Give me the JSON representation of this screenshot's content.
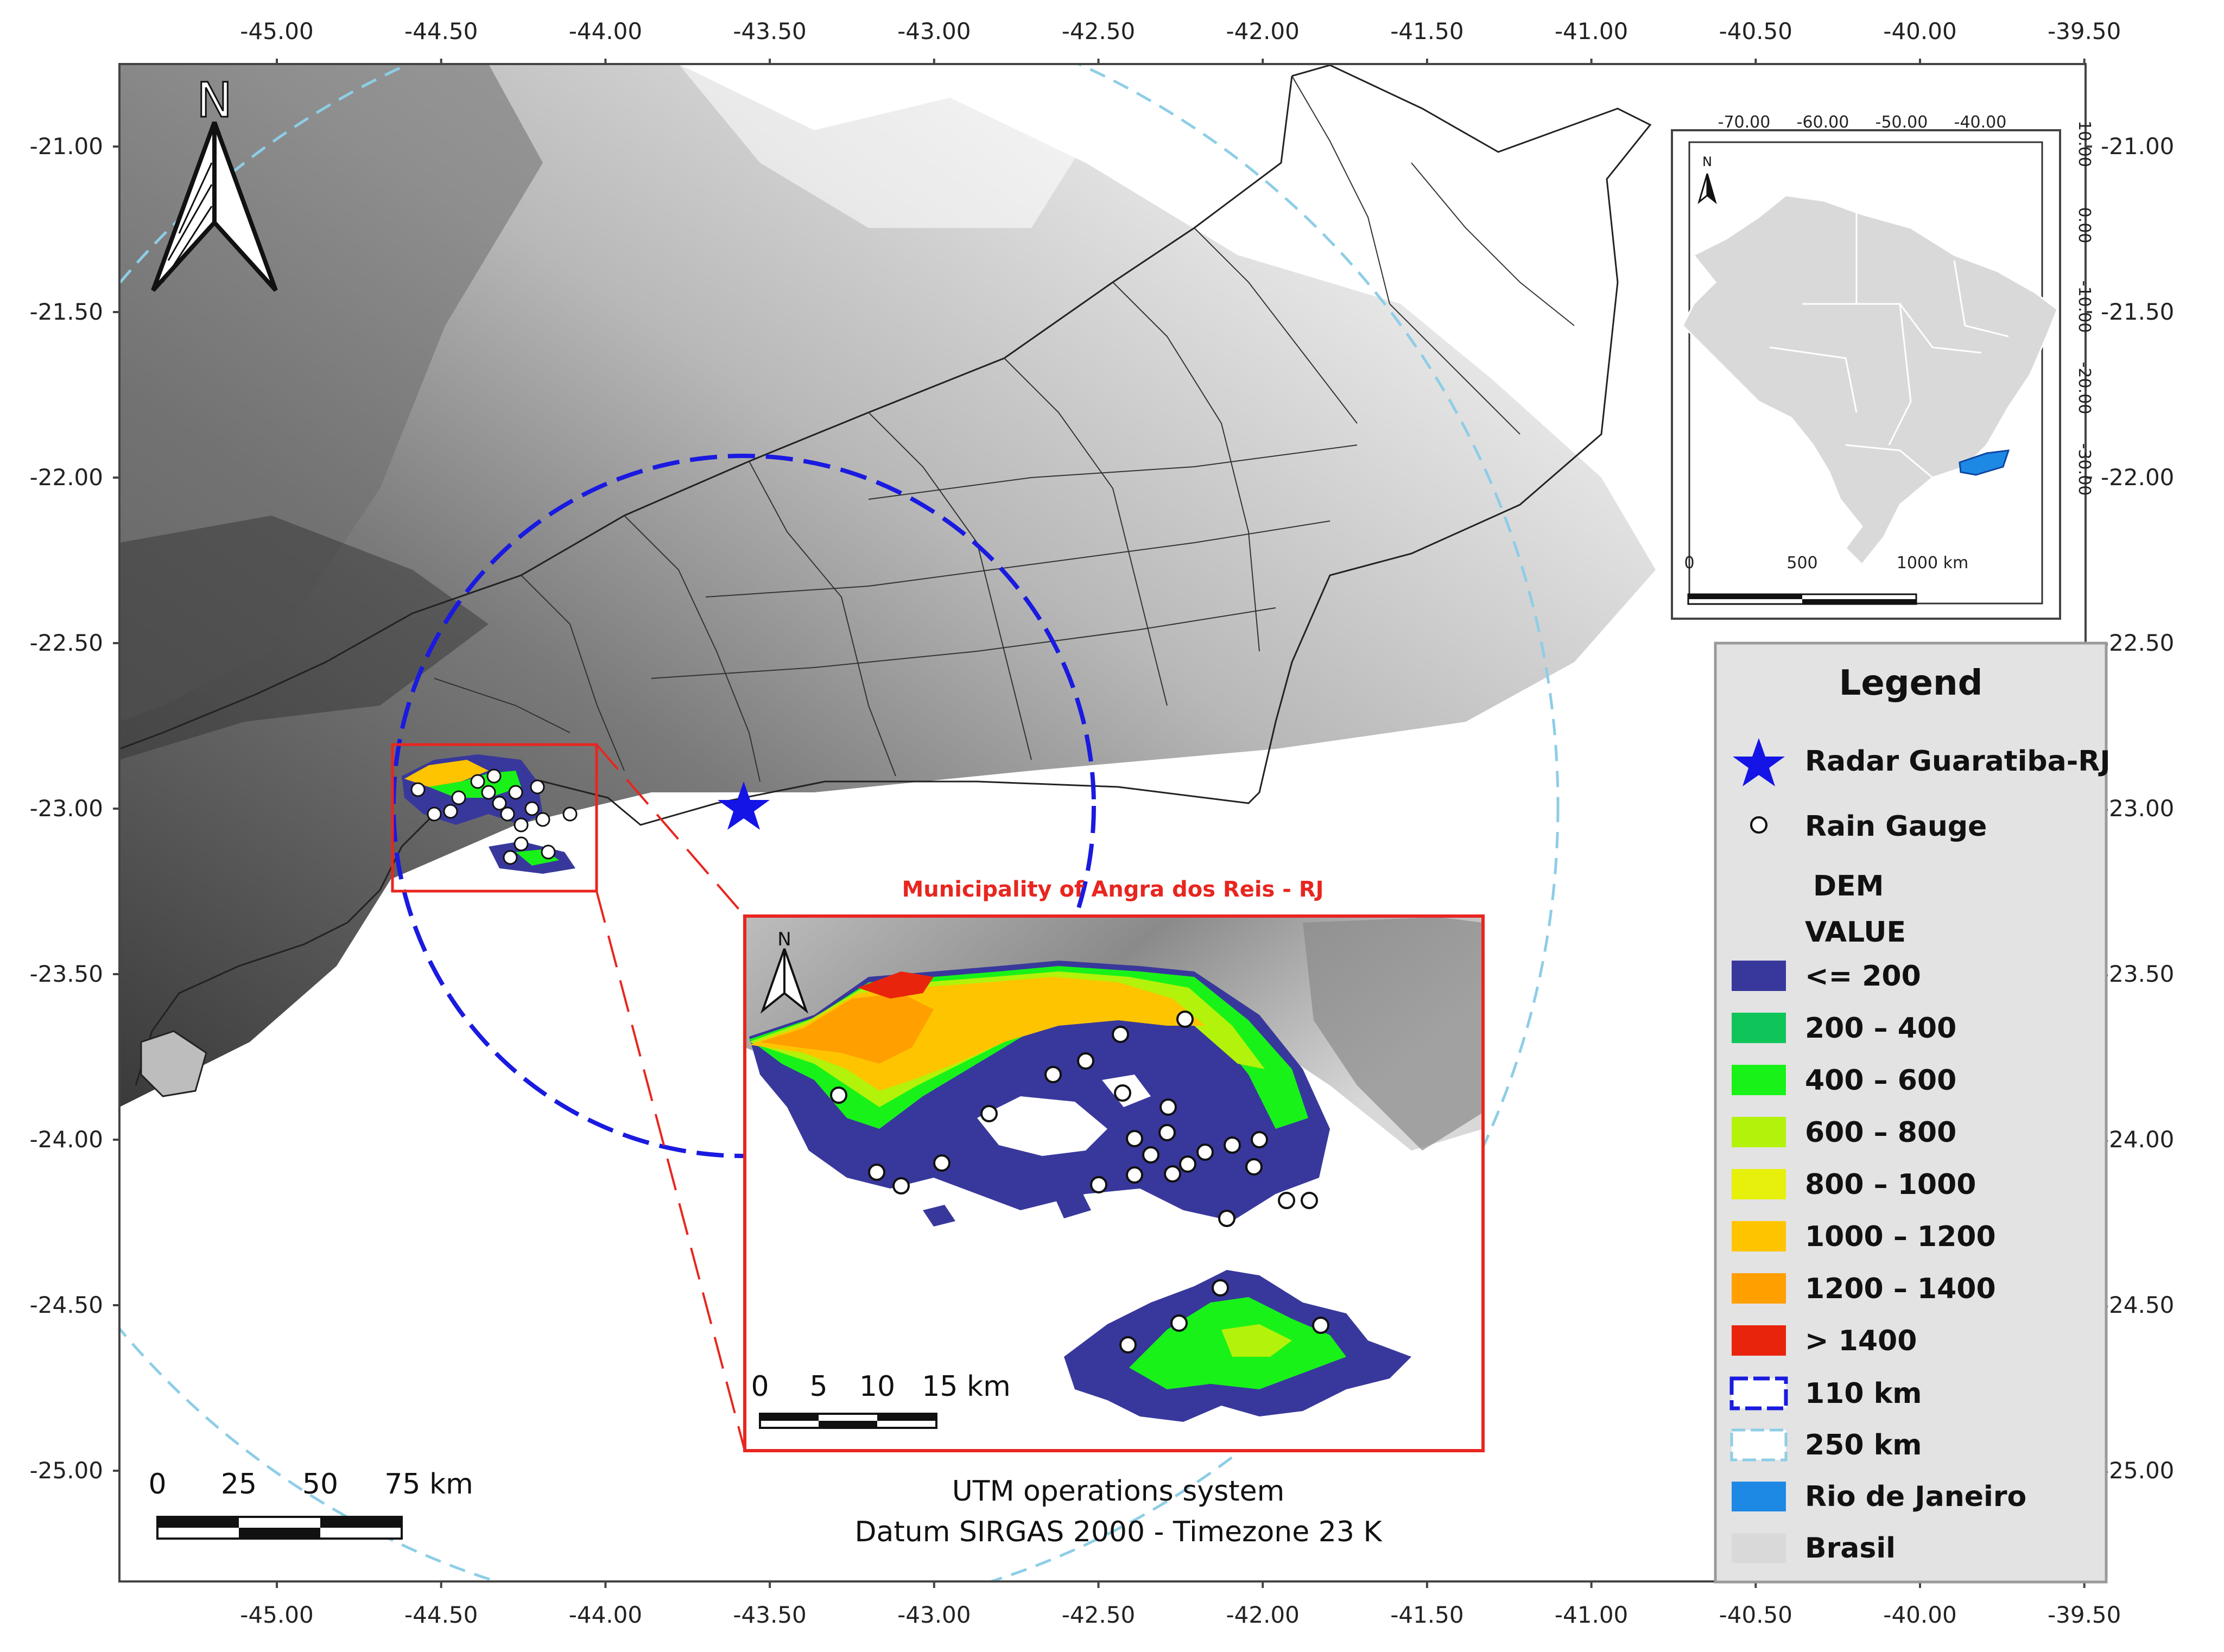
{
  "map": {
    "x_ticks": [
      "-45.00",
      "-44.50",
      "-44.00",
      "-43.50",
      "-43.00",
      "-42.50",
      "-42.00",
      "-41.50",
      "-41.00",
      "-40.50",
      "-40.00",
      "-39.50"
    ],
    "y_ticks": [
      "-21.00",
      "-21.50",
      "-22.00",
      "-22.50",
      "-23.00",
      "-23.50",
      "-24.00",
      "-24.50",
      "-25.00"
    ],
    "north_label": "N",
    "scalebar_labels": [
      "0",
      "25",
      "50",
      "75 km"
    ]
  },
  "locator": {
    "x_ticks": [
      "-70.00",
      "-60.00",
      "-50.00",
      "-40.00"
    ],
    "y_ticks": [
      "10.00",
      "0.00",
      "-10.00",
      "-20.00",
      "-30.00"
    ],
    "north_label": "N",
    "scalebar_labels": [
      "0",
      "500",
      "1000 km"
    ],
    "brazil_color": "#d9d9d9",
    "rj_color": "#1e88e5"
  },
  "inset": {
    "title": "Municipality of Angra dos Reis - RJ",
    "north_label": "N",
    "scalebar_labels": [
      "0",
      "5",
      "10",
      "15 km"
    ]
  },
  "datum_lines": [
    "UTM operations system",
    "Datum SIRGAS 2000 - Timezone 23 K"
  ],
  "legend": {
    "title": "Legend",
    "radar_label": "Radar Guaratiba-RJ",
    "gauge_label": "Rain Gauge",
    "dem_title": "DEM",
    "dem_subtitle": "VALUE",
    "dem_classes": [
      {
        "label": "<= 200",
        "color": "#38389c"
      },
      {
        "label": "200 – 400",
        "color": "#0fc55a"
      },
      {
        "label": "400 – 600",
        "color": "#19f219"
      },
      {
        "label": "600 – 800",
        "color": "#b3f20a"
      },
      {
        "label": "800 – 1000",
        "color": "#e6f00a"
      },
      {
        "label": "1000 – 1200",
        "color": "#ffc400"
      },
      {
        "label": "1200 – 1400",
        "color": "#ff9f00"
      },
      {
        "label": "> 1400",
        "color": "#e8250c"
      }
    ],
    "ring_110_label": "110 km",
    "ring_250_label": "250 km",
    "rj_label": "Rio de Janeiro",
    "brasil_label": "Brasil",
    "ring_110_color": "#1a1ae0",
    "ring_250_color": "#8ecde6",
    "radar_color": "#1414e6"
  }
}
